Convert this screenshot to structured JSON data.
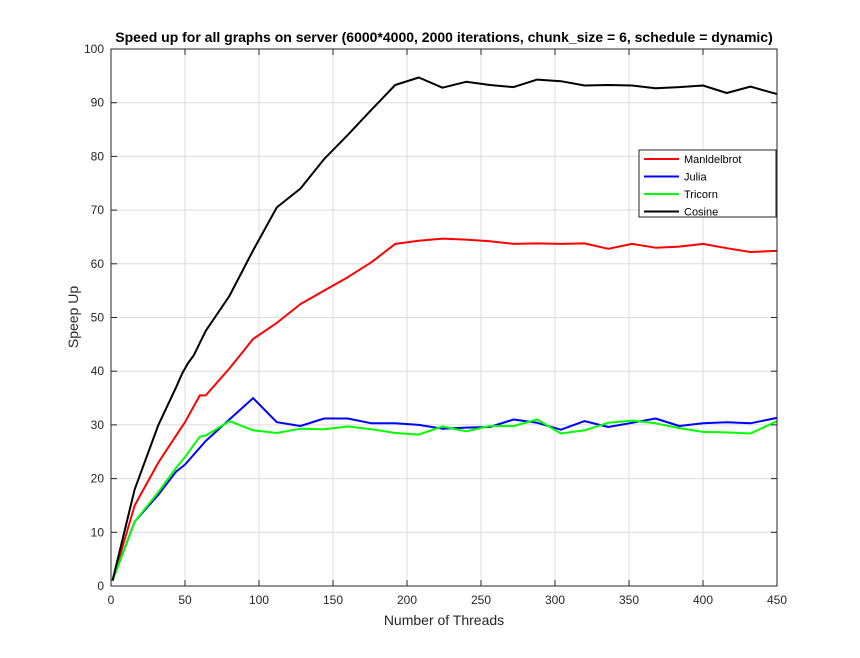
{
  "chart_data": {
    "type": "line",
    "title": "Speed up for all graphs on server (6000*4000, 2000 iterations, chunk_size = 6, schedule = dynamic)",
    "xlabel": "Number of Threads",
    "ylabel": "Speep Up",
    "xlim": [
      0,
      450
    ],
    "ylim": [
      0,
      100
    ],
    "xticks": [
      0,
      50,
      100,
      150,
      200,
      250,
      300,
      350,
      400,
      450
    ],
    "yticks": [
      0,
      10,
      20,
      30,
      40,
      50,
      60,
      70,
      80,
      90,
      100
    ],
    "grid": true,
    "legend_position": "upper-right",
    "series": [
      {
        "name": "Manldelbrot",
        "color": "#ff0000",
        "x": [
          1,
          16,
          32,
          44,
          50,
          60,
          64,
          80,
          96,
          112,
          128,
          144,
          160,
          176,
          192,
          208,
          224,
          240,
          256,
          272,
          288,
          304,
          320,
          336,
          352,
          368,
          384,
          400,
          416,
          432,
          450
        ],
        "y": [
          1,
          15,
          23,
          28,
          30.5,
          35.5,
          35.5,
          40.5,
          46,
          49,
          52.5,
          55,
          57.5,
          60.3,
          63.7,
          64.3,
          64.7,
          64.5,
          64.2,
          63.7,
          63.8,
          63.7,
          63.8,
          62.8,
          63.7,
          63,
          63.2,
          63.7,
          62.9,
          62.2,
          62.4
        ]
      },
      {
        "name": "Julia",
        "color": "#0000ff",
        "x": [
          1,
          16,
          32,
          44,
          50,
          64,
          80,
          96,
          112,
          128,
          144,
          160,
          176,
          192,
          208,
          224,
          240,
          256,
          272,
          288,
          304,
          320,
          336,
          352,
          368,
          384,
          400,
          416,
          432,
          450
        ],
        "y": [
          1,
          12,
          17,
          21.3,
          22.6,
          27,
          31,
          35,
          30.5,
          29.8,
          31.2,
          31.2,
          30.3,
          30.3,
          30,
          29.3,
          29.5,
          29.6,
          31,
          30.4,
          29.1,
          30.7,
          29.6,
          30.4,
          31.2,
          29.8,
          30.3,
          30.5,
          30.3,
          31.3
        ]
      },
      {
        "name": "Tricorn",
        "color": "#00ff00",
        "x": [
          1,
          16,
          32,
          44,
          50,
          60,
          64,
          80,
          96,
          112,
          128,
          144,
          160,
          176,
          192,
          208,
          224,
          240,
          256,
          272,
          288,
          304,
          320,
          336,
          352,
          368,
          384,
          400,
          416,
          432,
          450
        ],
        "y": [
          1,
          12,
          17.5,
          22,
          24,
          27.8,
          28,
          30.7,
          29,
          28.5,
          29.3,
          29.2,
          29.7,
          29.2,
          28.5,
          28.2,
          29.7,
          28.8,
          29.8,
          29.8,
          31,
          28.4,
          29,
          30.4,
          30.8,
          30.3,
          29.4,
          28.7,
          28.6,
          28.4,
          30.7
        ]
      },
      {
        "name": "Cosine",
        "color": "#000000",
        "x": [
          1,
          16,
          32,
          44,
          48,
          52,
          56,
          64,
          80,
          96,
          112,
          128,
          144,
          160,
          176,
          192,
          208,
          224,
          240,
          256,
          272,
          288,
          304,
          320,
          336,
          352,
          368,
          384,
          400,
          416,
          432,
          450
        ],
        "y": [
          1,
          18,
          30,
          37,
          39.5,
          41.5,
          43,
          47.5,
          54,
          62.5,
          70.5,
          74,
          79.5,
          84,
          88.7,
          93.3,
          94.7,
          92.8,
          93.9,
          93.3,
          92.9,
          94.3,
          94,
          93.2,
          93.3,
          93.2,
          92.7,
          92.9,
          93.2,
          91.8,
          93,
          91.6
        ]
      }
    ]
  }
}
